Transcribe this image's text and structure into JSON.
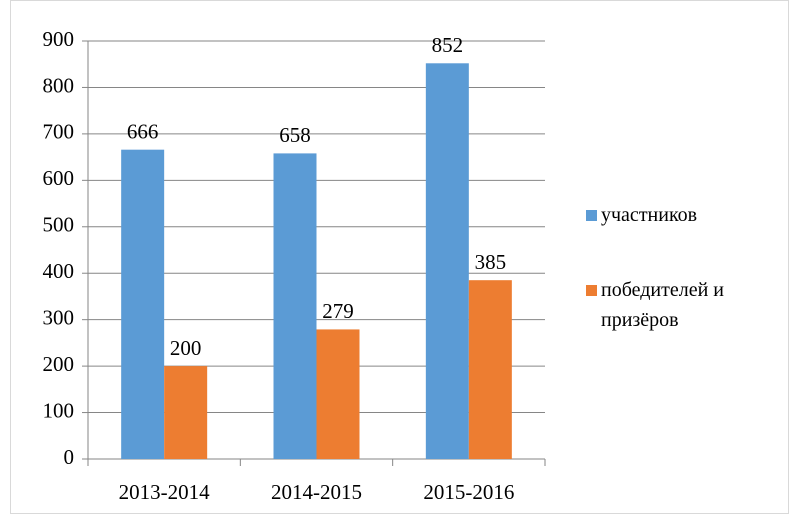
{
  "chart_data": {
    "type": "bar",
    "categories": [
      "2013-2014",
      "2014-2015",
      "2015-2016"
    ],
    "series": [
      {
        "name": "участников",
        "color": "#5b9bd5",
        "values": [
          666,
          658,
          852
        ]
      },
      {
        "name": "победителей и призёров",
        "color": "#ed7d31",
        "values": [
          200,
          279,
          385
        ]
      }
    ],
    "ylim": [
      0,
      900
    ],
    "yticks": [
      0,
      100,
      200,
      300,
      400,
      500,
      600,
      700,
      800,
      900
    ],
    "grid": true,
    "legend": "right"
  }
}
